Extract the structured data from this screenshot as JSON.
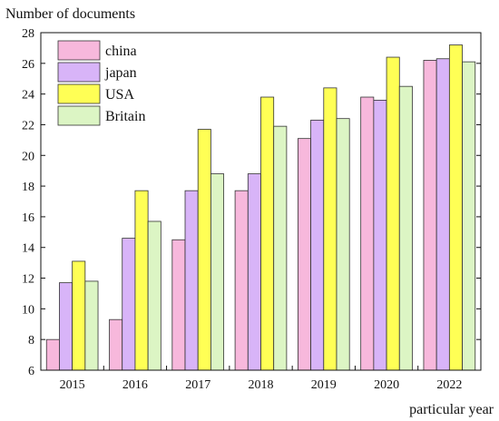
{
  "chart_data": {
    "type": "bar",
    "ylabel": "Number of documents",
    "xlabel": "particular year",
    "categories": [
      "2015",
      "2016",
      "2017",
      "2018",
      "2019",
      "2020",
      "2022"
    ],
    "ylim": [
      6,
      28
    ],
    "yticks": [
      6,
      8,
      10,
      12,
      14,
      16,
      18,
      20,
      22,
      24,
      26,
      28
    ],
    "legend_position": "top-left",
    "series": [
      {
        "name": "china",
        "color": "#f7b8dc",
        "values": [
          8.0,
          9.3,
          14.5,
          17.7,
          21.1,
          23.8,
          26.2
        ]
      },
      {
        "name": "japan",
        "color": "#d8b4f8",
        "values": [
          11.7,
          14.6,
          17.7,
          18.8,
          22.3,
          23.6,
          26.3
        ]
      },
      {
        "name": "USA",
        "color": "#ffff55",
        "values": [
          13.1,
          17.7,
          21.7,
          23.8,
          24.4,
          26.4,
          27.2
        ]
      },
      {
        "name": "Britain",
        "color": "#dcf5c4",
        "values": [
          11.8,
          15.7,
          18.8,
          21.9,
          22.4,
          24.5,
          26.1
        ]
      }
    ]
  }
}
